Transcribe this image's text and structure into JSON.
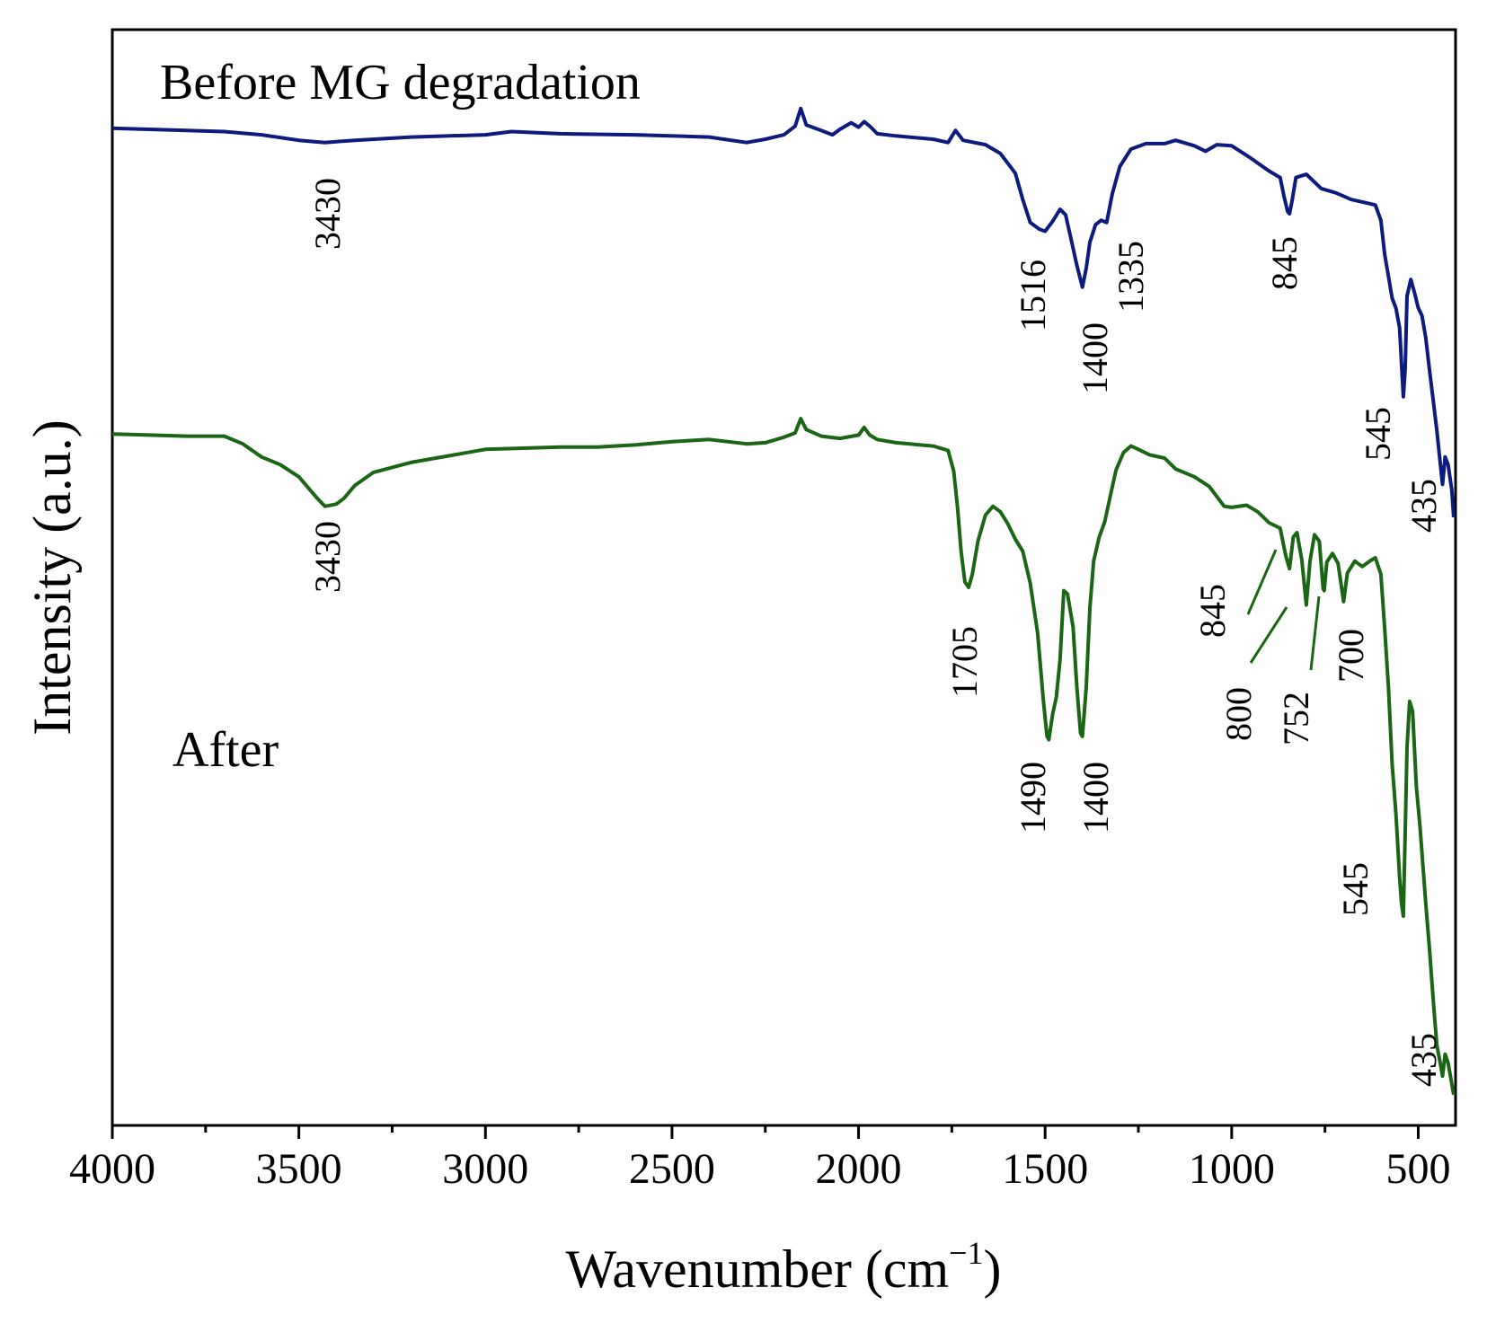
{
  "chart_data": {
    "type": "line",
    "title": "",
    "xlabel": "Wavenumber (cm",
    "xlabel_sup": "−1",
    "xlabel_close": ")",
    "ylabel": "Intensity (a.u.)",
    "xlim": [
      4000,
      400
    ],
    "x_reversed": true,
    "ylim": [
      0,
      100
    ],
    "yticks_shown": false,
    "grid": false,
    "x_ticks": [
      4000,
      3500,
      3000,
      2500,
      2000,
      1500,
      1000,
      500
    ],
    "x_tick_labels": [
      "4000",
      "3500",
      "3000",
      "2500",
      "2000",
      "1500",
      "1000",
      "500"
    ],
    "x_minor_ticks": [
      3750,
      3250,
      2750,
      2250,
      1750,
      1250,
      750
    ],
    "series": [
      {
        "name": "Before MG degradation",
        "color": "#0d1a7e",
        "points": [
          [
            4000,
            91.0
          ],
          [
            3900,
            90.9
          ],
          [
            3800,
            90.8
          ],
          [
            3700,
            90.7
          ],
          [
            3600,
            90.4
          ],
          [
            3500,
            89.9
          ],
          [
            3430,
            89.7
          ],
          [
            3350,
            89.9
          ],
          [
            3200,
            90.2
          ],
          [
            3000,
            90.4
          ],
          [
            2930,
            90.7
          ],
          [
            2800,
            90.5
          ],
          [
            2600,
            90.4
          ],
          [
            2400,
            90.2
          ],
          [
            2300,
            89.7
          ],
          [
            2250,
            90.0
          ],
          [
            2200,
            90.4
          ],
          [
            2170,
            91.2
          ],
          [
            2155,
            92.8
          ],
          [
            2140,
            91.3
          ],
          [
            2100,
            90.8
          ],
          [
            2070,
            90.4
          ],
          [
            2050,
            90.9
          ],
          [
            2020,
            91.5
          ],
          [
            2000,
            91.1
          ],
          [
            1985,
            91.6
          ],
          [
            1970,
            91.2
          ],
          [
            1950,
            90.5
          ],
          [
            1900,
            90.3
          ],
          [
            1800,
            90.0
          ],
          [
            1760,
            89.7
          ],
          [
            1740,
            90.8
          ],
          [
            1720,
            89.9
          ],
          [
            1660,
            89.5
          ],
          [
            1620,
            88.7
          ],
          [
            1580,
            86.9
          ],
          [
            1560,
            84.5
          ],
          [
            1540,
            82.4
          ],
          [
            1516,
            81.8
          ],
          [
            1500,
            81.6
          ],
          [
            1480,
            82.5
          ],
          [
            1460,
            83.6
          ],
          [
            1445,
            83.1
          ],
          [
            1430,
            80.8
          ],
          [
            1415,
            78.5
          ],
          [
            1400,
            76.5
          ],
          [
            1390,
            78.2
          ],
          [
            1380,
            80.6
          ],
          [
            1365,
            82.2
          ],
          [
            1350,
            82.6
          ],
          [
            1335,
            82.4
          ],
          [
            1320,
            85.0
          ],
          [
            1300,
            87.5
          ],
          [
            1270,
            89.1
          ],
          [
            1230,
            89.6
          ],
          [
            1180,
            89.6
          ],
          [
            1150,
            89.9
          ],
          [
            1100,
            89.4
          ],
          [
            1070,
            88.9
          ],
          [
            1040,
            89.5
          ],
          [
            1000,
            89.4
          ],
          [
            950,
            88.3
          ],
          [
            900,
            87.1
          ],
          [
            870,
            86.5
          ],
          [
            860,
            84.8
          ],
          [
            850,
            83.4
          ],
          [
            845,
            83.2
          ],
          [
            838,
            84.4
          ],
          [
            828,
            86.5
          ],
          [
            800,
            86.8
          ],
          [
            760,
            85.5
          ],
          [
            720,
            85.1
          ],
          [
            680,
            84.5
          ],
          [
            640,
            84.2
          ],
          [
            615,
            84.0
          ],
          [
            600,
            82.6
          ],
          [
            590,
            79.5
          ],
          [
            580,
            77.5
          ],
          [
            570,
            75.5
          ],
          [
            560,
            74.6
          ],
          [
            550,
            72.8
          ],
          [
            545,
            69.6
          ],
          [
            540,
            66.5
          ],
          [
            535,
            69.0
          ],
          [
            530,
            75.7
          ],
          [
            520,
            77.2
          ],
          [
            510,
            76.0
          ],
          [
            500,
            74.6
          ],
          [
            490,
            73.9
          ],
          [
            480,
            71.9
          ],
          [
            470,
            69.0
          ],
          [
            460,
            66.2
          ],
          [
            450,
            63.4
          ],
          [
            440,
            60.1
          ],
          [
            435,
            58.5
          ],
          [
            428,
            61.0
          ],
          [
            420,
            60.3
          ],
          [
            410,
            58.0
          ],
          [
            405,
            55.5
          ]
        ]
      },
      {
        "name": "After",
        "color": "#1a6614",
        "points": [
          [
            4000,
            63.1
          ],
          [
            3900,
            63.0
          ],
          [
            3800,
            62.9
          ],
          [
            3700,
            62.9
          ],
          [
            3650,
            62.2
          ],
          [
            3600,
            61.0
          ],
          [
            3550,
            60.3
          ],
          [
            3500,
            59.2
          ],
          [
            3450,
            57.2
          ],
          [
            3430,
            56.5
          ],
          [
            3400,
            56.7
          ],
          [
            3380,
            57.2
          ],
          [
            3350,
            58.4
          ],
          [
            3300,
            59.6
          ],
          [
            3200,
            60.5
          ],
          [
            3100,
            61.1
          ],
          [
            3000,
            61.7
          ],
          [
            2900,
            61.8
          ],
          [
            2800,
            61.9
          ],
          [
            2700,
            61.9
          ],
          [
            2600,
            62.1
          ],
          [
            2500,
            62.4
          ],
          [
            2400,
            62.6
          ],
          [
            2300,
            62.2
          ],
          [
            2250,
            62.3
          ],
          [
            2200,
            62.8
          ],
          [
            2170,
            63.2
          ],
          [
            2155,
            64.5
          ],
          [
            2140,
            63.5
          ],
          [
            2100,
            62.9
          ],
          [
            2050,
            62.7
          ],
          [
            2000,
            63.0
          ],
          [
            1985,
            63.7
          ],
          [
            1970,
            63.0
          ],
          [
            1950,
            62.6
          ],
          [
            1900,
            62.3
          ],
          [
            1800,
            62.0
          ],
          [
            1760,
            61.6
          ],
          [
            1745,
            59.7
          ],
          [
            1735,
            56.5
          ],
          [
            1725,
            52.3
          ],
          [
            1715,
            49.6
          ],
          [
            1705,
            49.1
          ],
          [
            1695,
            50.3
          ],
          [
            1680,
            53.3
          ],
          [
            1660,
            55.7
          ],
          [
            1640,
            56.5
          ],
          [
            1620,
            56.0
          ],
          [
            1600,
            54.9
          ],
          [
            1580,
            53.5
          ],
          [
            1560,
            52.4
          ],
          [
            1540,
            49.5
          ],
          [
            1520,
            44.9
          ],
          [
            1505,
            38.9
          ],
          [
            1495,
            35.5
          ],
          [
            1490,
            35.2
          ],
          [
            1480,
            37.5
          ],
          [
            1470,
            39.1
          ],
          [
            1460,
            42.5
          ],
          [
            1450,
            48.8
          ],
          [
            1440,
            48.5
          ],
          [
            1425,
            45.5
          ],
          [
            1415,
            40.0
          ],
          [
            1405,
            35.8
          ],
          [
            1400,
            35.5
          ],
          [
            1390,
            39.9
          ],
          [
            1380,
            47.2
          ],
          [
            1370,
            51.5
          ],
          [
            1355,
            53.7
          ],
          [
            1340,
            55.1
          ],
          [
            1325,
            57.5
          ],
          [
            1310,
            59.8
          ],
          [
            1290,
            61.4
          ],
          [
            1270,
            62.0
          ],
          [
            1250,
            61.7
          ],
          [
            1220,
            61.2
          ],
          [
            1180,
            60.9
          ],
          [
            1150,
            59.9
          ],
          [
            1100,
            59.2
          ],
          [
            1060,
            58.3
          ],
          [
            1020,
            56.5
          ],
          [
            1000,
            56.4
          ],
          [
            960,
            56.6
          ],
          [
            930,
            56.0
          ],
          [
            900,
            55.0
          ],
          [
            870,
            54.5
          ],
          [
            855,
            52.0
          ],
          [
            845,
            50.8
          ],
          [
            835,
            53.7
          ],
          [
            825,
            54.1
          ],
          [
            812,
            51.6
          ],
          [
            800,
            47.5
          ],
          [
            790,
            51.5
          ],
          [
            778,
            53.9
          ],
          [
            765,
            53.3
          ],
          [
            755,
            49.0
          ],
          [
            752,
            48.8
          ],
          [
            745,
            51.4
          ],
          [
            730,
            52.2
          ],
          [
            715,
            51.3
          ],
          [
            700,
            47.8
          ],
          [
            690,
            50.4
          ],
          [
            670,
            51.5
          ],
          [
            650,
            51.0
          ],
          [
            630,
            51.5
          ],
          [
            615,
            51.8
          ],
          [
            600,
            50.3
          ],
          [
            590,
            45.4
          ],
          [
            580,
            40.0
          ],
          [
            570,
            33.0
          ],
          [
            560,
            28.5
          ],
          [
            550,
            22.7
          ],
          [
            545,
            20.3
          ],
          [
            540,
            19.1
          ],
          [
            535,
            26.5
          ],
          [
            530,
            34.5
          ],
          [
            523,
            38.7
          ],
          [
            515,
            37.8
          ],
          [
            505,
            30.9
          ],
          [
            495,
            27.2
          ],
          [
            480,
            20.3
          ],
          [
            470,
            16.2
          ],
          [
            460,
            11.5
          ],
          [
            450,
            7.3
          ],
          [
            440,
            5.5
          ],
          [
            435,
            4.5
          ],
          [
            428,
            6.5
          ],
          [
            420,
            5.7
          ],
          [
            410,
            3.8
          ],
          [
            405,
            2.8
          ]
        ]
      }
    ],
    "annotations": {
      "series_labels": [
        "Before MG degradation",
        "After"
      ],
      "peaks": [
        {
          "text": "3430",
          "series": 0,
          "x": 3430
        },
        {
          "text": "1516",
          "series": 0,
          "x": 1516
        },
        {
          "text": "1400",
          "series": 0,
          "x": 1400
        },
        {
          "text": "1335",
          "series": 0,
          "x": 1335
        },
        {
          "text": "845",
          "series": 0,
          "x": 845
        },
        {
          "text": "545",
          "series": 0,
          "x": 545
        },
        {
          "text": "435",
          "series": 0,
          "x": 435
        },
        {
          "text": "3430",
          "series": 1,
          "x": 3430
        },
        {
          "text": "1705",
          "series": 1,
          "x": 1705
        },
        {
          "text": "1490",
          "series": 1,
          "x": 1490
        },
        {
          "text": "1400",
          "series": 1,
          "x": 1400
        },
        {
          "text": "845",
          "series": 1,
          "x": 845
        },
        {
          "text": "800",
          "series": 1,
          "x": 800
        },
        {
          "text": "752",
          "series": 1,
          "x": 752
        },
        {
          "text": "700",
          "series": 1,
          "x": 700
        },
        {
          "text": "545",
          "series": 1,
          "x": 545
        },
        {
          "text": "435",
          "series": 1,
          "x": 435
        }
      ]
    }
  }
}
